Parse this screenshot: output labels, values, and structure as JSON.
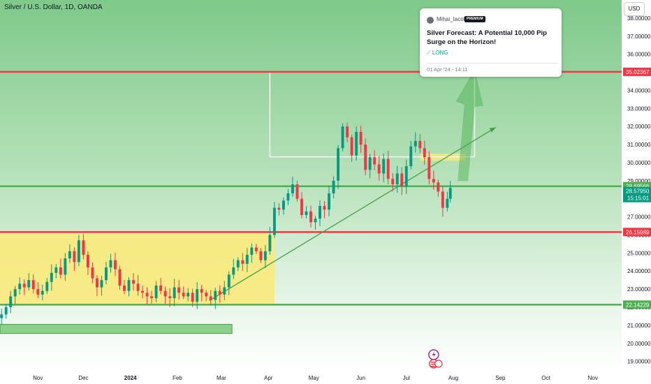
{
  "header": {
    "title": "Silver / U.S. Dollar, 1D, OANDA",
    "currency": "USD"
  },
  "idea": {
    "author": "Mihai_Iacob",
    "badge": "PREMIUM",
    "title": "Silver Forecast: A Potential 10,000 Pip Surge on the Horizon!",
    "direction": "LONG",
    "published": "01 Apr '24 - 14:11"
  },
  "chart_data": {
    "type": "candlestick",
    "ylim": [
      18.6,
      39.0
    ],
    "y_ticks": [
      "19.00000",
      "20.00000",
      "21.00000",
      "22.00000",
      "23.00000",
      "24.00000",
      "25.00000",
      "26.00000",
      "27.00000",
      "28.00000",
      "29.00000",
      "30.00000",
      "31.00000",
      "32.00000",
      "33.00000",
      "34.00000",
      "35.00000",
      "36.00000",
      "37.00000",
      "38.00000"
    ],
    "x_ticks": [
      {
        "label": "Nov",
        "x": 0
      },
      {
        "label": "Dec",
        "x": 30
      },
      {
        "label": "2024",
        "x": 61
      },
      {
        "label": "Feb",
        "x": 92
      },
      {
        "label": "Mar",
        "x": 121
      },
      {
        "label": "Apr",
        "x": 152
      },
      {
        "label": "May",
        "x": 182
      },
      {
        "label": "Jun",
        "x": 213
      },
      {
        "label": "Jul",
        "x": 243
      },
      {
        "label": "Aug",
        "x": 274
      },
      {
        "label": "Sep",
        "x": 305
      },
      {
        "label": "Oct",
        "x": 335
      },
      {
        "label": "Nov",
        "x": 366
      }
    ],
    "x_range": [
      -25,
      385
    ],
    "levels": [
      {
        "value": 35.02367,
        "label": "35.02367",
        "color": "#f23645"
      },
      {
        "value": 28.69566,
        "label": "28.69566",
        "color": "#4caf50"
      },
      {
        "value": 26.15989,
        "label": "26.15989",
        "color": "#f23645"
      },
      {
        "value": 22.14229,
        "label": "22.14229",
        "color": "#4caf50"
      }
    ],
    "current_price": {
      "value": 28.5795,
      "label": "28.57950",
      "countdown": "15:15:01",
      "color": "#089981"
    },
    "closes": [
      [
        -24,
        21.6
      ],
      [
        -21,
        22.0
      ],
      [
        -18,
        22.6
      ],
      [
        -15,
        23.0
      ],
      [
        -12,
        23.3
      ],
      [
        -9,
        23.1
      ],
      [
        -6,
        23.5
      ],
      [
        -3,
        23.0
      ],
      [
        0,
        22.7
      ],
      [
        3,
        22.9
      ],
      [
        6,
        23.4
      ],
      [
        9,
        23.9
      ],
      [
        12,
        24.2
      ],
      [
        15,
        23.8
      ],
      [
        18,
        24.7
      ],
      [
        21,
        25.1
      ],
      [
        24,
        24.5
      ],
      [
        27,
        25.7
      ],
      [
        30,
        24.9
      ],
      [
        33,
        24.2
      ],
      [
        36,
        23.6
      ],
      [
        39,
        23.1
      ],
      [
        42,
        23.5
      ],
      [
        45,
        24.2
      ],
      [
        48,
        24.6
      ],
      [
        51,
        24.1
      ],
      [
        54,
        23.2
      ],
      [
        57,
        22.9
      ],
      [
        60,
        23.5
      ],
      [
        63,
        23.3
      ],
      [
        66,
        22.9
      ],
      [
        69,
        22.8
      ],
      [
        72,
        22.6
      ],
      [
        75,
        22.5
      ],
      [
        78,
        23.2
      ],
      [
        81,
        22.9
      ],
      [
        84,
        22.6
      ],
      [
        87,
        22.5
      ],
      [
        90,
        23.1
      ],
      [
        93,
        22.8
      ],
      [
        96,
        22.6
      ],
      [
        99,
        22.8
      ],
      [
        102,
        22.3
      ],
      [
        105,
        23.0
      ],
      [
        108,
        22.8
      ],
      [
        111,
        22.6
      ],
      [
        114,
        22.4
      ],
      [
        117,
        22.9
      ],
      [
        120,
        22.7
      ],
      [
        123,
        23.1
      ],
      [
        126,
        23.8
      ],
      [
        129,
        24.2
      ],
      [
        132,
        24.6
      ],
      [
        135,
        24.4
      ],
      [
        138,
        24.9
      ],
      [
        141,
        25.3
      ],
      [
        144,
        25.1
      ],
      [
        147,
        24.6
      ],
      [
        150,
        25.1
      ],
      [
        153,
        26.0
      ],
      [
        156,
        27.5
      ],
      [
        159,
        27.4
      ],
      [
        162,
        27.9
      ],
      [
        165,
        28.3
      ],
      [
        168,
        28.8
      ],
      [
        171,
        28.0
      ],
      [
        174,
        27.1
      ],
      [
        177,
        27.3
      ],
      [
        180,
        26.7
      ],
      [
        183,
        26.9
      ],
      [
        186,
        27.6
      ],
      [
        189,
        27.4
      ],
      [
        192,
        28.3
      ],
      [
        195,
        29.0
      ],
      [
        198,
        30.8
      ],
      [
        201,
        32.0
      ],
      [
        204,
        31.4
      ],
      [
        207,
        30.4
      ],
      [
        210,
        31.7
      ],
      [
        213,
        31.0
      ],
      [
        216,
        29.6
      ],
      [
        219,
        30.3
      ],
      [
        222,
        29.9
      ],
      [
        225,
        29.4
      ],
      [
        228,
        30.2
      ],
      [
        231,
        29.1
      ],
      [
        234,
        28.8
      ],
      [
        237,
        29.4
      ],
      [
        240,
        28.7
      ],
      [
        243,
        29.8
      ],
      [
        246,
        30.9
      ],
      [
        249,
        31.2
      ],
      [
        252,
        30.8
      ],
      [
        255,
        30.3
      ],
      [
        258,
        29.1
      ],
      [
        261,
        28.9
      ],
      [
        264,
        28.4
      ],
      [
        267,
        27.5
      ],
      [
        270,
        28.0
      ],
      [
        272,
        28.6
      ]
    ],
    "annotations": {
      "low_zone": {
        "x0": -25,
        "x1": 156,
        "y0": 22.14,
        "y1": 26.1,
        "color": "#fbe97a"
      },
      "resistance_zone": {
        "x0": 252,
        "x1": 282,
        "y0": 30.1,
        "y1": 30.5,
        "color": "#fbe97a"
      },
      "support_box": {
        "x0": -25,
        "x1": 128,
        "y0": 20.55,
        "y1": 21.05,
        "color": "#8bd08b"
      },
      "trendline": [
        [
          113,
          22.36
        ],
        [
          302,
          31.95
        ]
      ],
      "target_box": {
        "x0": 153,
        "x1": 288,
        "y0": 30.32,
        "y1": 35.02
      },
      "projection_arrow": {
        "from_x": 278,
        "from_y": 29.0,
        "to_x": 287,
        "to_y": 35.1
      }
    }
  }
}
